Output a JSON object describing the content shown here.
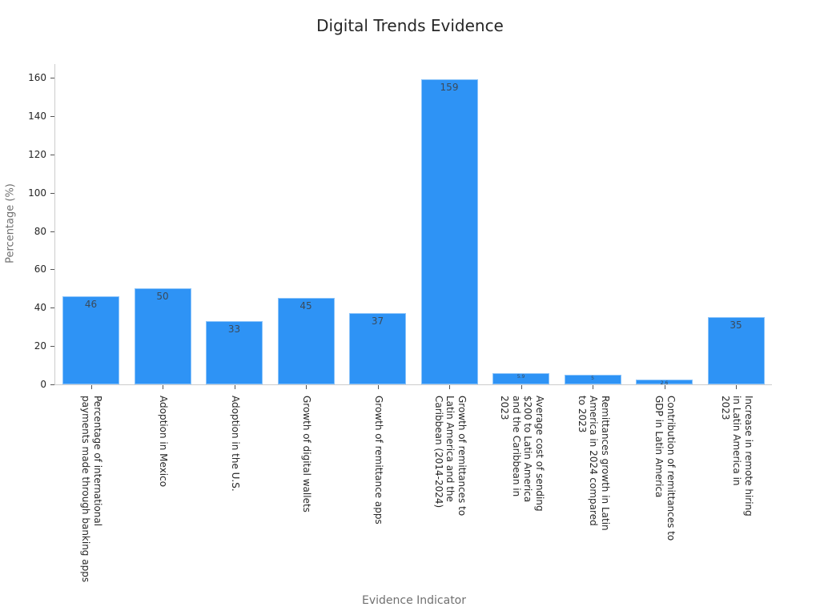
{
  "chart_data": {
    "type": "bar",
    "title": "Digital Trends Evidence",
    "xlabel": "Evidence Indicator",
    "ylabel": "Percentage (%)",
    "ylim": [
      0,
      167
    ],
    "yticks": [
      0,
      20,
      40,
      60,
      80,
      100,
      120,
      140,
      160
    ],
    "grid": false,
    "legend": null,
    "bar_color": "#2e93f5",
    "categories": [
      "Percentage of international payments made through banking apps",
      "Adoption in Mexico",
      "Adoption in the U.S.",
      "Growth of digital wallets",
      "Growth of remittance apps",
      "Growth of remittances to Latin America and the Caribbean (2014-2024)",
      "Average cost of sending $200 to Latin America and the Caribbean in 2023",
      "Remittances growth in Latin America in 2024 compared to 2023",
      "Contribution of remittances to GDP in Latin America",
      "Increase in remote hiring in Latin America in 2023"
    ],
    "category_lines": [
      "Percentage of international\npayments made through banking apps",
      "Adoption in Mexico",
      "Adoption in the U.S.",
      "Growth of digital wallets",
      "Growth of remittance apps",
      "Growth of remittances to\nLatin America and the\nCaribbean (2014-2024)",
      "Average cost of sending\n$200 to Latin America\nand the Caribbean in\n2023",
      "Remittances growth in Latin\nAmerica in 2024 compared\nto 2023",
      "Contribution of remittances to\nGDP in Latin America",
      "Increase in remote hiring\nin Latin America in\n2023"
    ],
    "values": [
      46,
      50,
      33,
      45,
      37,
      159,
      5.9,
      5,
      2.6,
      35
    ],
    "value_labels": [
      "46",
      "50",
      "33",
      "45",
      "37",
      "159",
      "5.9",
      "5",
      "2.6",
      "35"
    ]
  }
}
